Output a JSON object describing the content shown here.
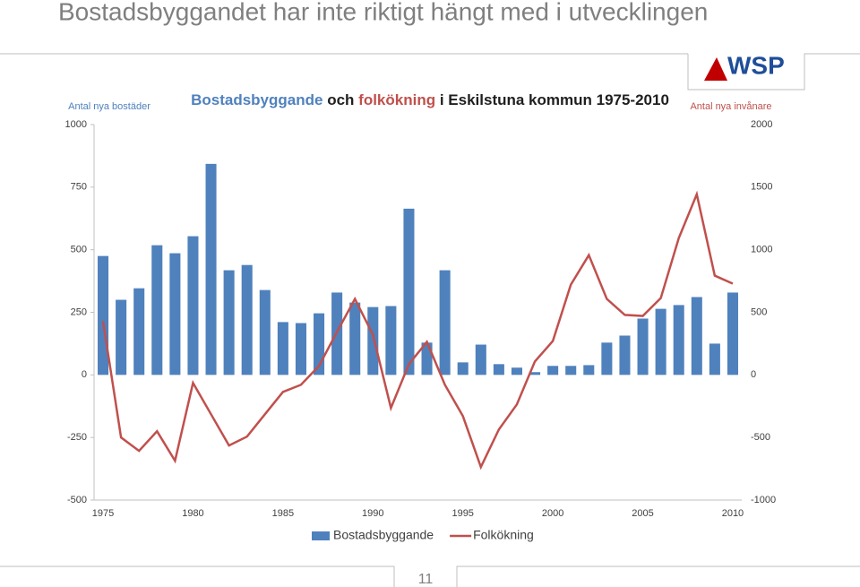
{
  "slide": {
    "title": "Bostadsbyggandet har inte riktigt hängt med i utvecklingen",
    "logo": "WSP",
    "page_number": "11"
  },
  "chart_data": {
    "type": "bar_line",
    "title_parts": [
      {
        "text": "Bostadsbyggande",
        "color": "#4f81bd"
      },
      {
        "text": "och",
        "color": "#1f1f1f"
      },
      {
        "text": "folkökning",
        "color": "#c0504d"
      },
      {
        "text": "i Eskilstuna kommun 1975-2010",
        "color": "#1f1f1f"
      }
    ],
    "y_label": "Antal nya bostäder",
    "y2_label": "Antal nya invånare",
    "categories": [
      "1975",
      null,
      null,
      null,
      null,
      "1980",
      null,
      null,
      null,
      null,
      "1985",
      null,
      null,
      null,
      null,
      "1990",
      null,
      null,
      null,
      null,
      "1995",
      null,
      null,
      null,
      null,
      "2000",
      null,
      null,
      null,
      null,
      "2005",
      null,
      null,
      null,
      null,
      "2010"
    ],
    "series": [
      {
        "name": "Bostadsbyggande",
        "kind": "bar",
        "color": "#4f81bd",
        "axis": "y",
        "values": [
          475,
          300,
          346,
          518,
          486,
          554,
          843,
          418,
          439,
          339,
          211,
          207,
          246,
          329,
          289,
          271,
          275,
          664,
          129,
          418,
          50,
          121,
          43,
          29,
          11,
          36,
          36,
          39,
          129,
          157,
          225,
          264,
          279,
          311,
          125,
          329
        ]
      },
      {
        "name": "Folkökning",
        "kind": "line",
        "color": "#c0504d",
        "axis": "y2",
        "values": [
          429,
          -500,
          -607,
          -450,
          -686,
          -64,
          -314,
          -564,
          -493,
          -314,
          -136,
          -79,
          71,
          343,
          607,
          321,
          -264,
          86,
          264,
          -79,
          -329,
          -736,
          -436,
          -236,
          107,
          271,
          721,
          957,
          607,
          479,
          471,
          614,
          1093,
          1443,
          793,
          729
        ]
      }
    ],
    "ylim": [
      -500,
      1000
    ],
    "yticks": [
      -500,
      -250,
      0,
      250,
      500,
      750,
      1000
    ],
    "y2lim": [
      -1000,
      2000
    ],
    "y2ticks": [
      -1000,
      -500,
      0,
      500,
      1000,
      1500,
      2000
    ],
    "grid": false,
    "legend": "bottom"
  }
}
